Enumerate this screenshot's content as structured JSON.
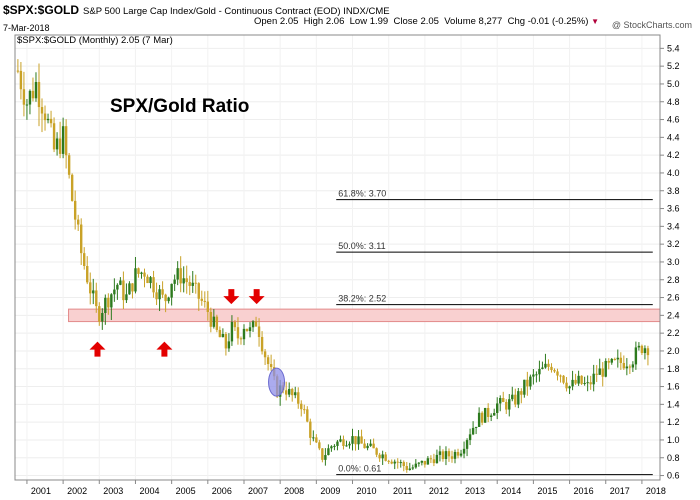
{
  "header": {
    "symbol": "$SPX:$GOLD",
    "description": "S&P 500 Large Cap Index/Gold - Continuous Contract (EOD)  INDX/CME",
    "date": "7-Mar-2018",
    "ohlc": {
      "open_label": "Open",
      "open": "2.05",
      "high_label": "High",
      "high": "2.06",
      "low_label": "Low",
      "low": "1.99",
      "close_label": "Close",
      "close": "2.05",
      "volume_label": "Volume",
      "volume": "8,277",
      "chg_label": "Chg",
      "chg": "-0.01 (-0.25%)",
      "chg_marker": "▼"
    },
    "brand": "@ StockCharts.com"
  },
  "chart_data": {
    "type": "ohlc",
    "legend": "$SPX:$GOLD (Monthly) 2.05 (7 Mar)",
    "annotation_title": "SPX/Gold Ratio",
    "x_ticks": [
      "2001",
      "2002",
      "2003",
      "2004",
      "2005",
      "2006",
      "2007",
      "2008",
      "2009",
      "2010",
      "2011",
      "2012",
      "2013",
      "2014",
      "2015",
      "2016",
      "2017",
      "2018"
    ],
    "y_ticks": [
      0.6,
      0.8,
      1.0,
      1.2,
      1.4,
      1.6,
      1.8,
      2.0,
      2.2,
      2.4,
      2.6,
      2.8,
      3.0,
      3.2,
      3.4,
      3.6,
      3.8,
      4.0,
      4.2,
      4.4,
      4.6,
      4.8,
      5.0,
      5.2,
      5.4
    ],
    "ylim": [
      0.55,
      5.55
    ],
    "xlim": [
      2000.67,
      2018.5
    ],
    "fib_levels": [
      {
        "label": "61.8%: 3.70",
        "value": 3.7
      },
      {
        "label": "50.0%: 3.11",
        "value": 3.11
      },
      {
        "label": "38.2%: 2.52",
        "value": 2.52
      },
      {
        "label": "0.0%: 0.61",
        "value": 0.61
      }
    ],
    "resistance_band": [
      2.33,
      2.47
    ],
    "arrows": [
      {
        "date": 2002.95,
        "direction": "up"
      },
      {
        "date": 2004.8,
        "direction": "up"
      },
      {
        "date": 2006.65,
        "direction": "down"
      },
      {
        "date": 2007.35,
        "direction": "down"
      }
    ],
    "highlight_ellipse": {
      "date": 2007.9,
      "value": 1.65
    },
    "colors": {
      "up": "#2d7a1e",
      "down": "#c9a227",
      "band": "#f9d0d0",
      "band_edge": "#e38a8a",
      "arrow": "#e30000",
      "ellipse": "#8f8fe8",
      "fib_line": "#000000"
    },
    "points": [
      [
        2000.75,
        5.15
      ],
      [
        2001.0,
        4.8
      ],
      [
        2001.25,
        5.0
      ],
      [
        2001.5,
        4.7
      ],
      [
        2001.75,
        4.25
      ],
      [
        2002.0,
        4.4
      ],
      [
        2002.25,
        3.7
      ],
      [
        2002.5,
        3.1
      ],
      [
        2002.75,
        2.7
      ],
      [
        2002.95,
        2.4
      ],
      [
        2003.25,
        2.6
      ],
      [
        2003.5,
        2.75
      ],
      [
        2003.75,
        2.6
      ],
      [
        2004.0,
        2.85
      ],
      [
        2004.25,
        2.9
      ],
      [
        2004.5,
        2.75
      ],
      [
        2004.8,
        2.55
      ],
      [
        2005.0,
        2.8
      ],
      [
        2005.25,
        2.85
      ],
      [
        2005.5,
        2.75
      ],
      [
        2005.75,
        2.6
      ],
      [
        2006.0,
        2.45
      ],
      [
        2006.25,
        2.2
      ],
      [
        2006.5,
        2.05
      ],
      [
        2006.65,
        2.25
      ],
      [
        2006.85,
        2.15
      ],
      [
        2007.0,
        2.3
      ],
      [
        2007.2,
        2.2
      ],
      [
        2007.35,
        2.35
      ],
      [
        2007.55,
        2.0
      ],
      [
        2007.75,
        1.75
      ],
      [
        2007.9,
        1.55
      ],
      [
        2008.1,
        1.6
      ],
      [
        2008.3,
        1.5
      ],
      [
        2008.6,
        1.4
      ],
      [
        2008.85,
        1.05
      ],
      [
        2009.15,
        0.8
      ],
      [
        2009.45,
        0.95
      ],
      [
        2009.75,
        1.0
      ],
      [
        2010.0,
        1.02
      ],
      [
        2010.25,
        0.95
      ],
      [
        2010.5,
        0.9
      ],
      [
        2010.75,
        0.85
      ],
      [
        2011.0,
        0.8
      ],
      [
        2011.25,
        0.75
      ],
      [
        2011.55,
        0.68
      ],
      [
        2011.75,
        0.7
      ],
      [
        2012.0,
        0.75
      ],
      [
        2012.25,
        0.8
      ],
      [
        2012.5,
        0.82
      ],
      [
        2012.75,
        0.83
      ],
      [
        2013.0,
        0.9
      ],
      [
        2013.25,
        1.1
      ],
      [
        2013.5,
        1.25
      ],
      [
        2013.75,
        1.3
      ],
      [
        2014.0,
        1.4
      ],
      [
        2014.25,
        1.4
      ],
      [
        2014.5,
        1.45
      ],
      [
        2014.75,
        1.6
      ],
      [
        2015.0,
        1.7
      ],
      [
        2015.25,
        1.78
      ],
      [
        2015.5,
        1.85
      ],
      [
        2015.75,
        1.75
      ],
      [
        2016.0,
        1.6
      ],
      [
        2016.25,
        1.65
      ],
      [
        2016.5,
        1.6
      ],
      [
        2016.75,
        1.75
      ],
      [
        2017.0,
        1.8
      ],
      [
        2017.25,
        1.85
      ],
      [
        2017.5,
        1.88
      ],
      [
        2017.75,
        1.92
      ],
      [
        2018.0,
        2.05
      ],
      [
        2018.18,
        2.05
      ]
    ]
  }
}
